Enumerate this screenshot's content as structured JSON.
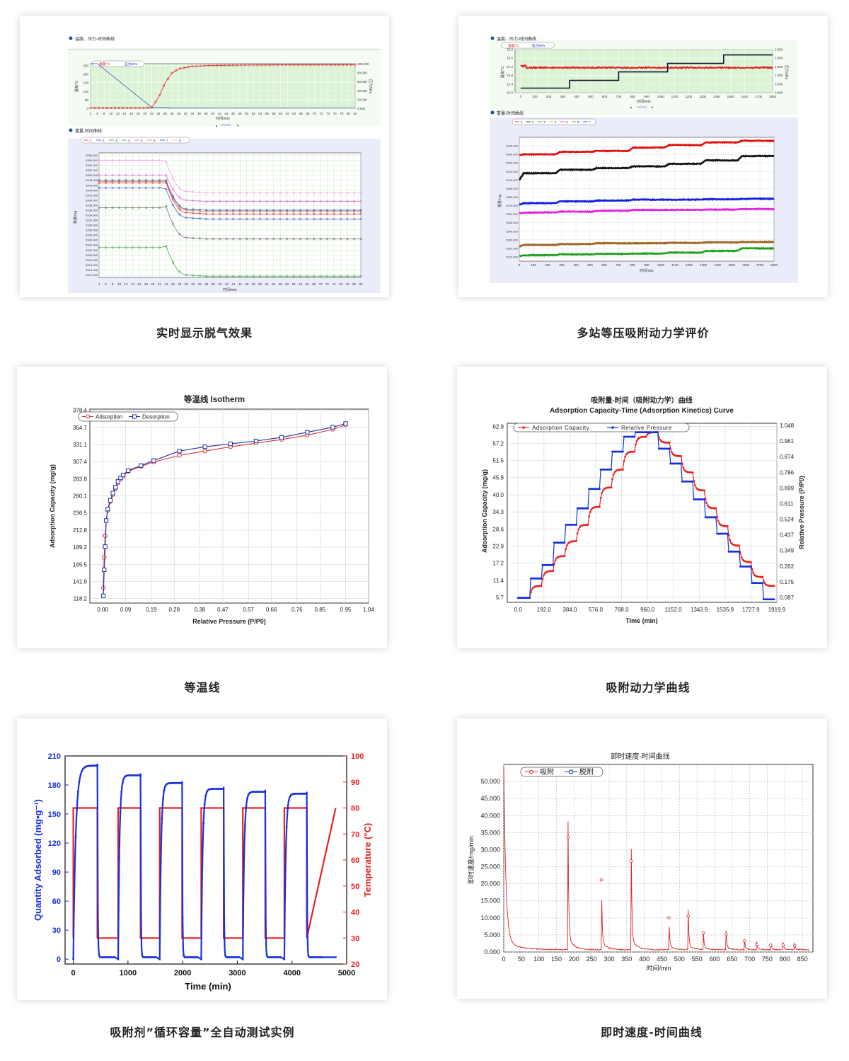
{
  "captions": {
    "c1": "实时显示脱气效果",
    "c2": "多站等压吸附动力学评价",
    "c3": "等温线",
    "c4": "吸附动力学曲线",
    "c5": "吸附剂”循环容量”全自动测试实例",
    "c6": "即时速度-时间曲线"
  },
  "chart_data": [
    {
      "id": "degas",
      "type": "line",
      "panels": [
        {
          "title": "温度、压力-时间曲线",
          "legend": [
            "温度/°C",
            "压力/kPa"
          ],
          "x": [
            4,
            6,
            8,
            10,
            12,
            14,
            16,
            18,
            20,
            22,
            24,
            26,
            28,
            30,
            32,
            34,
            36,
            38,
            40,
            42,
            44,
            46,
            48,
            50,
            52,
            54,
            56,
            58,
            60,
            62,
            64,
            66,
            68,
            70,
            72,
            74,
            76,
            78,
            80,
            82
          ],
          "xlabel": "时间/min",
          "ylabel": "温度/°C",
          "ylabel_right": "压力/kPa",
          "yticks": [
            0,
            50,
            100,
            150,
            200,
            250
          ],
          "yticks_right": [
            "0.000",
            "20.000",
            "40.000",
            "60.000",
            "80.000",
            "100.000"
          ],
          "series": [
            {
              "name": "温度/°C",
              "color": "#e02020",
              "x": [
                4,
                20,
                22,
                24,
                26,
                28,
                30,
                34,
                40,
                50,
                60,
                70,
                82
              ],
              "values": [
                2,
                2,
                5,
                60,
                150,
                205,
                230,
                245,
                250,
                252,
                253,
                253,
                253
              ]
            },
            {
              "name": "压力/kPa",
              "color": "#2040c0",
              "x": [
                4,
                6,
                22,
                24,
                28,
                40,
                60,
                82
              ],
              "values": [
                100,
                100,
                2,
                2,
                1,
                0.5,
                0.4,
                0.4
              ]
            }
          ]
        },
        {
          "title": "重量-时间曲线",
          "legend": [
            "1",
            "2",
            "3",
            "4",
            "5",
            "6",
            "7",
            "8"
          ],
          "xlabel": "时间/min",
          "ylabel": "重量/mg",
          "yticks": [
            "€310.000",
            "€312.000",
            "€314.000",
            "€316.000",
            "€318.000",
            "€320.000",
            "€322.000",
            "€324.000",
            "€326.000",
            "€328.000",
            "€330.000",
            "€332.000",
            "€334.000",
            "€336.000",
            "€338.000",
            "€340.000",
            "€342.000",
            "€344.000",
            "€346.000",
            "€348.000",
            "€350.000",
            "€352.000",
            "€354.000",
            "€356.000",
            "€358.000"
          ],
          "series": [
            {
              "name": "1",
              "color": "#e02020",
              "values": [
                347,
                347,
                347,
                335,
                334.5,
                334.5
              ]
            },
            {
              "name": "2",
              "color": "#3050c0",
              "values": [
                345,
                345,
                344.5,
                333,
                332.5,
                332.5
              ]
            },
            {
              "name": "3",
              "color": "#666666",
              "values": [
                337,
                337,
                337.5,
                325,
                324.5,
                324.5
              ]
            },
            {
              "name": "4",
              "color": "#30a030",
              "values": [
                321,
                321,
                321.5,
                310,
                309.5,
                309.5
              ]
            },
            {
              "name": "5",
              "color": "#e060e0",
              "values": [
                350,
                350,
                350,
                340,
                339.5,
                339.5
              ]
            },
            {
              "name": "6",
              "color": "#e08030",
              "values": [
                347.5,
                347.5,
                347.5,
                336,
                335.5,
                335.5
              ]
            },
            {
              "name": "7",
              "color": "#2040c0",
              "values": [
                348,
                348,
                348,
                336.5,
                336,
                336
              ]
            },
            {
              "name": "8",
              "color": "#f0a0f0",
              "values": [
                356,
                356,
                355.5,
                343.5,
                343,
                343
              ]
            }
          ]
        }
      ]
    },
    {
      "id": "multistation",
      "type": "line",
      "panels": [
        {
          "title": "温度、压力-时间曲线",
          "legend": [
            "温度/°C",
            "压力/kPa"
          ],
          "xticks": [
            0,
            100,
            200,
            300,
            400,
            500,
            600,
            700,
            800,
            900,
            1000,
            1100,
            1200,
            1300,
            1400,
            1500,
            1600,
            1700,
            1800
          ],
          "xlabel": "时间/min",
          "ylabel": "温度/°C",
          "ylabel_right": "压力/kPa",
          "yticks": [
            "20.0",
            "22.4",
            "24.8",
            "27.2",
            "29.6",
            "32.0"
          ],
          "yticks_right": [
            "0.000",
            "0.500",
            "1.000",
            "1.500",
            "2.000",
            "2.500"
          ],
          "series": [
            {
              "name": "温度/°C",
              "color": "#e02020",
              "values": [
                27.5,
                27.2,
                27.2,
                27.3,
                27.3,
                27.3,
                27.4,
                27.4
              ]
            },
            {
              "name": "压力/kPa",
              "color": "#111133",
              "x": [
                0,
                350,
                350,
                700,
                700,
                1050,
                1050,
                1450,
                1450,
                1800
              ],
              "values": [
                0.3,
                0.3,
                0.8,
                0.8,
                1.35,
                1.35,
                1.9,
                1.9,
                2.45,
                2.45
              ]
            }
          ]
        },
        {
          "title": "重量-时间曲线",
          "legend": [
            "1",
            "2",
            "3",
            "4",
            "5",
            "6",
            "7"
          ],
          "xticks": [
            0,
            100,
            200,
            300,
            400,
            500,
            600,
            700,
            800,
            900,
            1000,
            1100,
            1200,
            1300,
            1400,
            1500,
            1600,
            1700,
            1800
          ],
          "xlabel": "时间/min",
          "ylabel": "重量/mg",
          "yticks": [
            "€310.000",
            "€320.000",
            "€330.000",
            "€340.000",
            "€350.000",
            "€360.000",
            "€370.000",
            "€380.000",
            "€390.000",
            "€400.000",
            "€410.000",
            "€420.000",
            "€430.000",
            "€440.000"
          ],
          "series": [
            {
              "name": "1",
              "color": "#e01010",
              "values": [
                429,
                430,
                433,
                434,
                438,
                441,
                444,
                446
              ]
            },
            {
              "name": "2",
              "color": "#111111",
              "values": [
                400,
                408,
                412,
                414,
                416,
                419,
                423,
                428
              ]
            },
            {
              "name": "3",
              "color": "#20a020",
              "values": [
                311,
                312,
                313,
                313.5,
                314,
                315,
                317,
                320
              ]
            },
            {
              "name": "4",
              "color": "#ff9900",
              "values": [
                322,
                324,
                325,
                326,
                326,
                326.5,
                327,
                327.5
              ]
            },
            {
              "name": "5",
              "color": "#e020e0",
              "values": [
                361,
                362,
                363,
                364,
                365,
                365,
                365.5,
                366
              ]
            },
            {
              "name": "6",
              "color": "#9a6a30",
              "values": [
                322,
                324,
                325,
                326,
                326,
                326.5,
                327,
                327.5
              ]
            },
            {
              "name": "7",
              "color": "#1020e0",
              "values": [
                371,
                373,
                375,
                376,
                377,
                377,
                377.5,
                378
              ]
            }
          ]
        }
      ]
    },
    {
      "id": "isotherm",
      "type": "line",
      "title": "等温线 Isotherm",
      "xlabel": "Relative Pressure (P/P0)",
      "ylabel": "Adsorption Capacity (mg/g)",
      "xticks": [
        "0.00",
        "0.09",
        "0.19",
        "0.28",
        "0.38",
        "0.47",
        "0.57",
        "0.66",
        "0.76",
        "0.85",
        "0.95",
        "1.04"
      ],
      "yticks": [
        "118.2",
        "141.9",
        "165.5",
        "189.2",
        "212.8",
        "236.5",
        "260.1",
        "283.8",
        "307.4",
        "331.1",
        "354.7",
        "378.4"
      ],
      "xlim": [
        -0.05,
        1.04
      ],
      "ylim": [
        112,
        380
      ],
      "series": [
        {
          "name": "Adsorption",
          "color": "#e03030",
          "x": [
            0.003,
            0.006,
            0.01,
            0.014,
            0.02,
            0.03,
            0.04,
            0.05,
            0.06,
            0.07,
            0.08,
            0.1,
            0.15,
            0.2,
            0.3,
            0.4,
            0.5,
            0.6,
            0.7,
            0.8,
            0.9,
            0.95
          ],
          "values": [
            133,
            175,
            205,
            226,
            240,
            252,
            262,
            270,
            278,
            283,
            287,
            294,
            301,
            307,
            316,
            322,
            328,
            333,
            338,
            344,
            352,
            358
          ]
        },
        {
          "name": "Desorption",
          "color": "#2030a0",
          "x": [
            0.003,
            0.006,
            0.01,
            0.014,
            0.02,
            0.03,
            0.04,
            0.05,
            0.06,
            0.07,
            0.08,
            0.1,
            0.15,
            0.2,
            0.3,
            0.4,
            0.5,
            0.6,
            0.7,
            0.8,
            0.9,
            0.95
          ],
          "values": [
            122,
            158,
            190,
            226,
            242,
            254,
            264,
            272,
            280,
            285,
            289,
            295,
            302,
            309,
            322,
            328,
            332,
            336,
            341,
            348,
            355,
            360
          ]
        }
      ]
    },
    {
      "id": "kinetics",
      "type": "line",
      "title": "吸附量-时间（吸附动力学）曲线",
      "subtitle": "Adsorption Capacity-Time (Adsorption Kinetics) Curve",
      "xlabel": "Time (min)",
      "ylabel": "Adsorption Capacity (mg/g)",
      "ylabel_right": "Relative Pressure (P/P0)",
      "xticks": [
        "0.0",
        "192.0",
        "384.0",
        "576.0",
        "768.0",
        "960.0",
        "1152.0",
        "1343.9",
        "1535.9",
        "1727.9",
        "1919.9"
      ],
      "yticks": [
        "5.7",
        "11.4",
        "17.2",
        "22.9",
        "28.6",
        "34.3",
        "40.0",
        "45.8",
        "51.5",
        "57.2",
        "62.9"
      ],
      "yticks_right": [
        "0.087",
        "0.175",
        "0.262",
        "0.349",
        "0.437",
        "0.524",
        "0.611",
        "0.699",
        "0.786",
        "0.874",
        "0.961",
        "1.048"
      ],
      "xlim": [
        -80,
        1920
      ],
      "ylim": [
        4,
        64
      ],
      "series": [
        {
          "name": "Adsorption Capacity",
          "color": "#e82020",
          "steps": [
            5.5,
            9.5,
            14.5,
            19.5,
            24.5,
            30,
            36,
            42.5,
            48.5,
            54.5,
            59.5,
            61,
            57.5,
            53,
            47.5,
            41.5,
            35.5,
            29.5,
            23,
            17.5,
            12.5,
            9.5
          ]
        },
        {
          "name": "Relative Pressure",
          "color": "#1030e0",
          "steps": [
            5.5,
            12,
            16.5,
            24,
            30,
            35.5,
            42,
            48.5,
            54.5,
            59.5,
            61,
            61,
            55.5,
            50.5,
            44.5,
            38.5,
            32.5,
            27,
            21,
            16,
            10.5,
            5
          ]
        }
      ]
    },
    {
      "id": "cycle",
      "type": "line",
      "xlabel": "Time (min)",
      "ylabel": "Quantity Adsorbed (mg•g⁻¹)",
      "ylabel_right": "Temperature (°C)",
      "xticks": [
        0,
        1000,
        2000,
        3000,
        4000,
        5000
      ],
      "yticks": [
        0,
        30,
        60,
        90,
        120,
        150,
        180,
        210
      ],
      "yticks_right": [
        20,
        30,
        40,
        50,
        60,
        70,
        80,
        90,
        100
      ],
      "xlim": [
        -150,
        5000
      ],
      "ylim": [
        -5,
        210
      ],
      "ylim_right": [
        20,
        100
      ],
      "series": [
        {
          "name": "Quantity Adsorbed",
          "color": "#1530e0",
          "cycle_peaks": [
            200,
            190,
            182,
            176,
            173,
            171
          ]
        },
        {
          "name": "Temperature",
          "color": "#e82020",
          "low": 30,
          "high": 80
        }
      ]
    },
    {
      "id": "rate",
      "type": "line",
      "title": "即时速度-时间曲线",
      "xlabel": "时间/min",
      "ylabel": "即时速度/mg/min",
      "xticks": [
        0,
        50,
        100,
        150,
        200,
        250,
        300,
        350,
        400,
        450,
        500,
        550,
        600,
        650,
        700,
        750,
        800,
        850
      ],
      "yticks": [
        "0.000",
        "5.000",
        "10.000",
        "15.000",
        "20.000",
        "25.000",
        "30.000",
        "35.000",
        "40.000",
        "45.000",
        "50.000"
      ],
      "xlim": [
        0,
        880
      ],
      "ylim": [
        0,
        55000
      ],
      "series": [
        {
          "name": "吸附",
          "color": "#e02020",
          "peaks": [
            [
              183,
              33500
            ],
            [
              278,
              21000
            ],
            [
              363,
              26500
            ],
            [
              470,
              10000
            ],
            [
              525,
              10500
            ],
            [
              568,
              5500
            ],
            [
              633,
              5200
            ],
            [
              685,
              3200
            ],
            [
              720,
              2200
            ],
            [
              760,
              2000
            ],
            [
              795,
              2000
            ],
            [
              828,
              1800
            ]
          ]
        },
        {
          "name": "脱附",
          "color": "#2030c0"
        }
      ]
    }
  ]
}
